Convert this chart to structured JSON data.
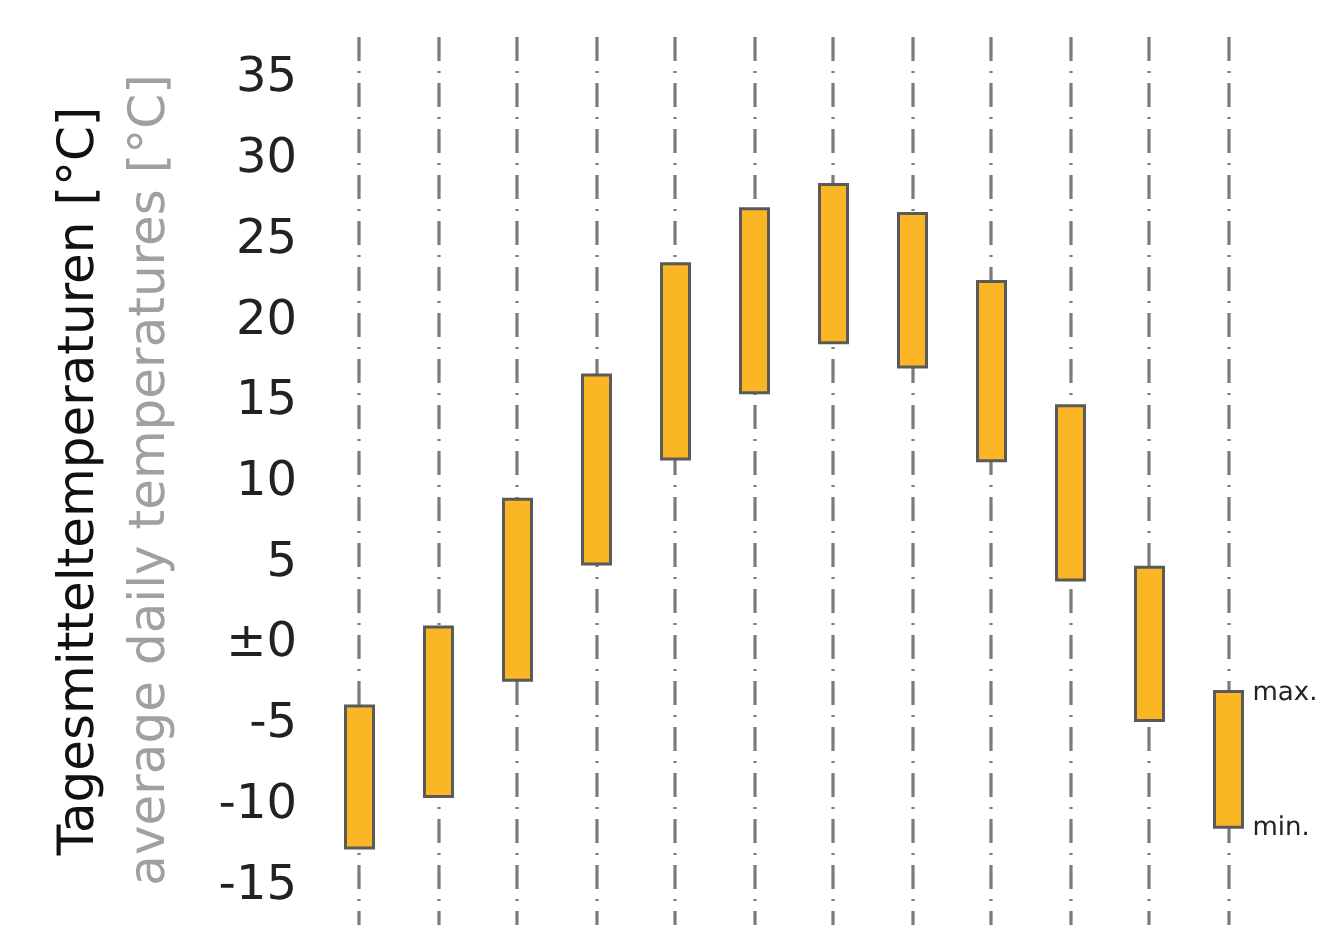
{
  "chart_data": {
    "type": "bar",
    "ylabel": "Tagesmitteltemperaturen [°C]",
    "categories": [
      null,
      null,
      null,
      null,
      null,
      null,
      null,
      null,
      null,
      null,
      null,
      null
    ],
    "base": [
      -12.8,
      -9.6,
      -2.4,
      4.8,
      11.3,
      15.4,
      18.5,
      17.0,
      11.2,
      3.8,
      -4.9,
      -11.5
    ],
    "values": [
      8.8,
      10.5,
      11.2,
      11.7,
      12.1,
      11.4,
      9.8,
      9.5,
      11.1,
      10.8,
      9.5,
      8.4
    ],
    "color": "#fbb626",
    "ylim": [
      -17.5,
      37.5
    ],
    "yticks": [
      {
        "value": -15,
        "label": "-15"
      },
      {
        "value": -10,
        "label": "-10"
      },
      {
        "value": -5,
        "label": "-5"
      },
      {
        "value": 0,
        "label": "±0"
      },
      5,
      10,
      15,
      20,
      25,
      30,
      35
    ],
    "grid": "x",
    "tick_labels": "y",
    "annotations": [
      "average daily temperatures [°C]",
      "max.",
      "min."
    ]
  }
}
